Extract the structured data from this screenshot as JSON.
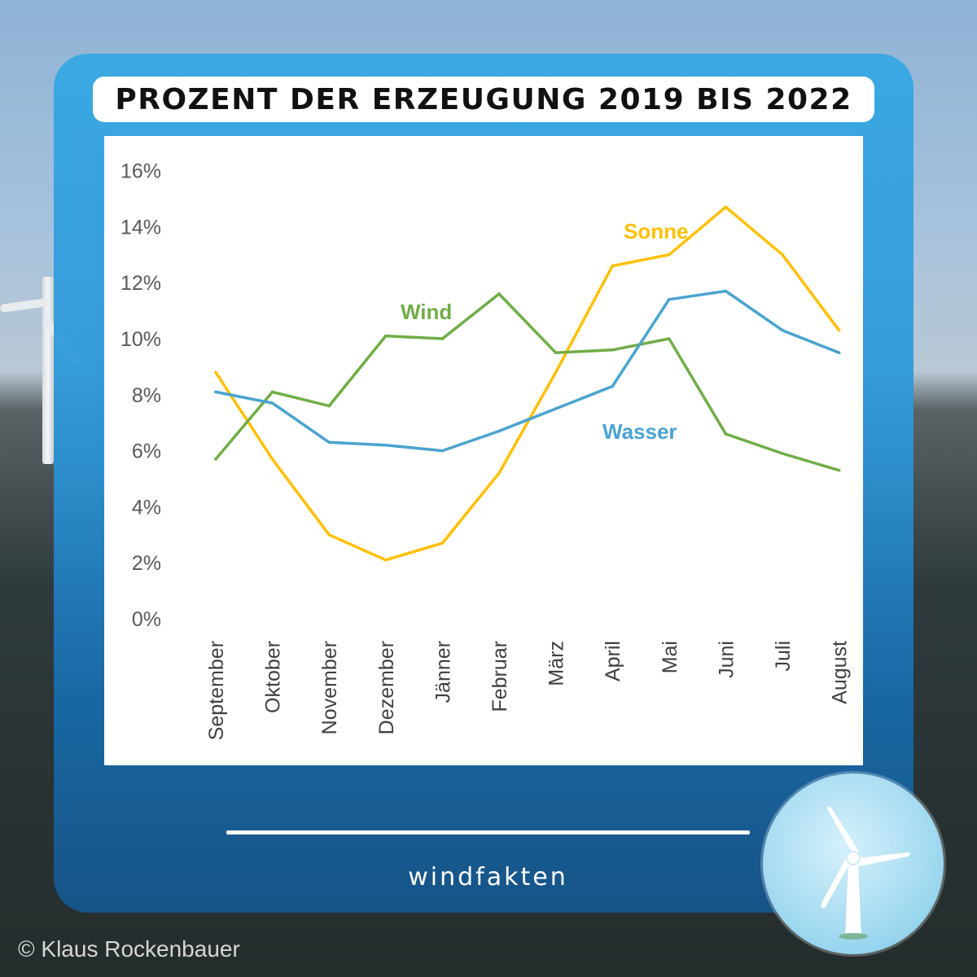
{
  "title": "PROZENT DER ERZEUGUNG 2019 BIS 2022",
  "brand": "windfakten",
  "copyright": "© Klaus Rockenbauer",
  "chart_data": {
    "type": "line",
    "categories": [
      "September",
      "Oktober",
      "November",
      "Dezember",
      "Jänner",
      "Februar",
      "März",
      "April",
      "Mai",
      "Juni",
      "Juli",
      "August"
    ],
    "y_tick_labels": [
      "0%",
      "2%",
      "4%",
      "6%",
      "8%",
      "10%",
      "12%",
      "14%",
      "16%"
    ],
    "ylim": [
      0,
      16
    ],
    "grid": false,
    "series": [
      {
        "name": "Sonne",
        "color": "#ffc000",
        "values": [
          8.8,
          5.7,
          3.0,
          2.1,
          2.7,
          5.2,
          8.8,
          12.6,
          13.0,
          14.7,
          13.0,
          10.3
        ]
      },
      {
        "name": "Wind",
        "color": "#70ad47",
        "values": [
          5.7,
          8.1,
          7.6,
          10.1,
          10.0,
          11.6,
          9.5,
          9.6,
          10.0,
          6.6,
          5.9,
          5.3
        ]
      },
      {
        "name": "Wasser",
        "color": "#4aa3cf",
        "values": [
          8.1,
          7.7,
          6.3,
          6.2,
          6.0,
          6.7,
          7.5,
          8.3,
          11.4,
          11.7,
          10.3,
          9.5
        ]
      }
    ]
  }
}
